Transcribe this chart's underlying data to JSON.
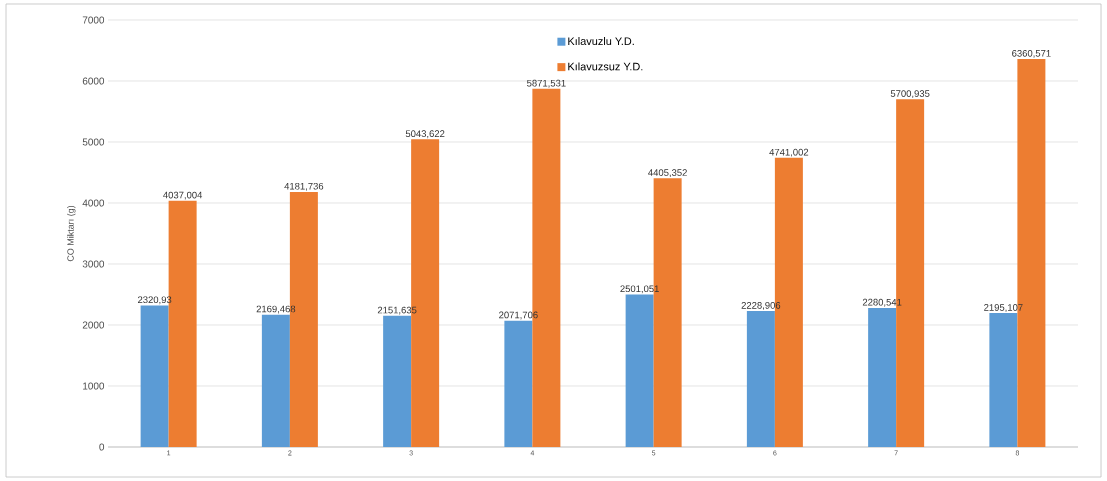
{
  "chart_data": {
    "type": "bar",
    "ylabel": "CO Miktarı (g)",
    "categories": [
      "1",
      "2",
      "3",
      "4",
      "5",
      "6",
      "7",
      "8"
    ],
    "series": [
      {
        "name": "Kılavuzlu Y.D.",
        "color": "#5b9bd5",
        "values": [
          2320.93,
          2169.468,
          2151.635,
          2071.706,
          2501.051,
          2228.906,
          2280.541,
          2195.107
        ],
        "value_labels": [
          "2320,93",
          "2169,468",
          "2151,635",
          "2071,706",
          "2501,051",
          "2228,906",
          "2280,541",
          "2195,107"
        ]
      },
      {
        "name": "Kılavuzsuz Y.D.",
        "color": "#ed7d31",
        "values": [
          4037.004,
          4181.736,
          5043.622,
          5871.531,
          4405.352,
          4741.002,
          5700.935,
          6360.571
        ],
        "value_labels": [
          "4037,004",
          "4181,736",
          "5043,622",
          "5871,531",
          "4405,352",
          "4741,002",
          "5700,935",
          "6360,571"
        ]
      }
    ],
    "ylim": [
      0,
      7000
    ],
    "yticks": [
      0,
      1000,
      2000,
      3000,
      4000,
      5000,
      6000,
      7000
    ],
    "grid": "y",
    "legend": "top"
  }
}
